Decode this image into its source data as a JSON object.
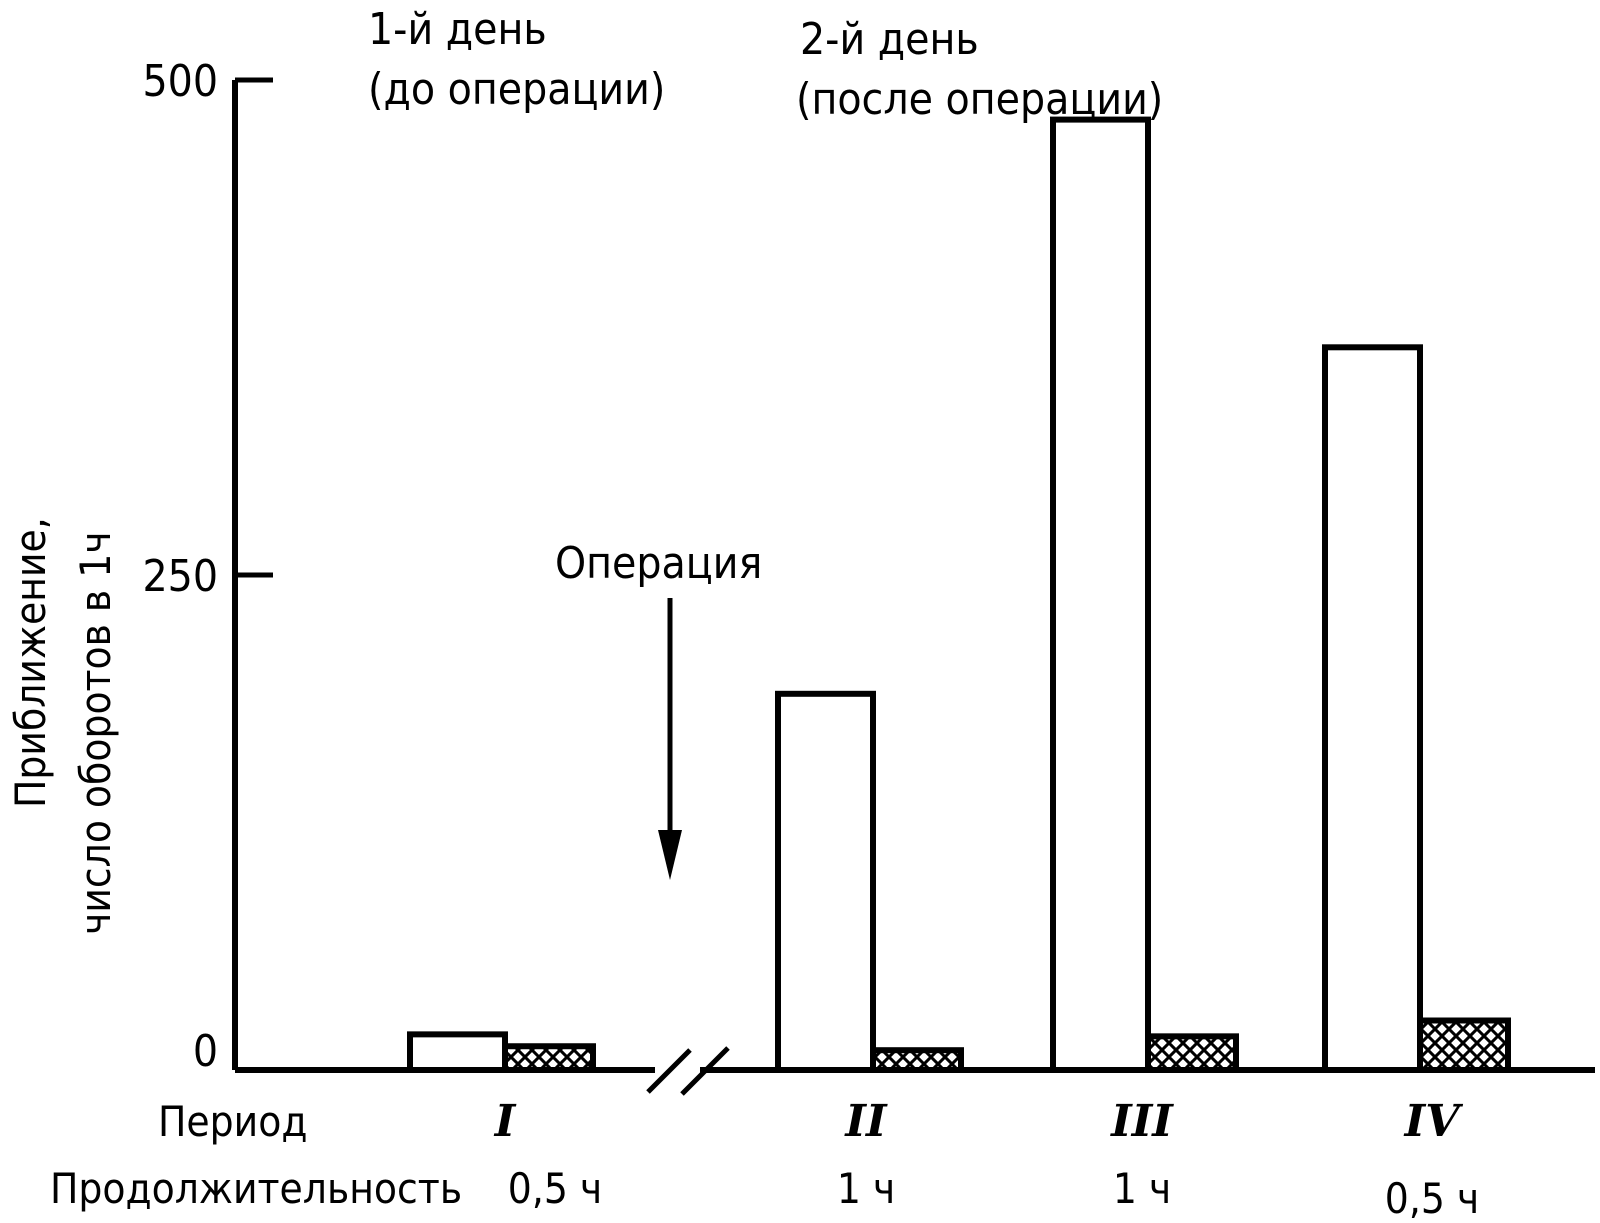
{
  "chart_data": {
    "type": "bar",
    "ylabel_line1": "Приближение,",
    "ylabel_line2": "число оборотов в 1ч",
    "ylim": [
      0,
      500
    ],
    "yticks": [
      "0",
      "250",
      "500"
    ],
    "categories": [
      "I",
      "II",
      "III",
      "IV"
    ],
    "series": [
      {
        "values": [
          18,
          190,
          480,
          365
        ],
        "fill": "white"
      },
      {
        "values": [
          12,
          10,
          17,
          25
        ],
        "fill": "crosshatch"
      }
    ],
    "row_labels": {
      "period": "Период",
      "duration": "Продолжительность"
    },
    "durations": [
      "0,5 ч",
      "1 ч",
      "1 ч",
      "0,5 ч"
    ],
    "annotations": {
      "day1_line1": "1-й день",
      "day1_line2": "(до операции)",
      "day2_line1": "2-й день",
      "day2_line2": "(после операции)",
      "operation": "Операция"
    },
    "axis_break": true,
    "grid": false
  }
}
